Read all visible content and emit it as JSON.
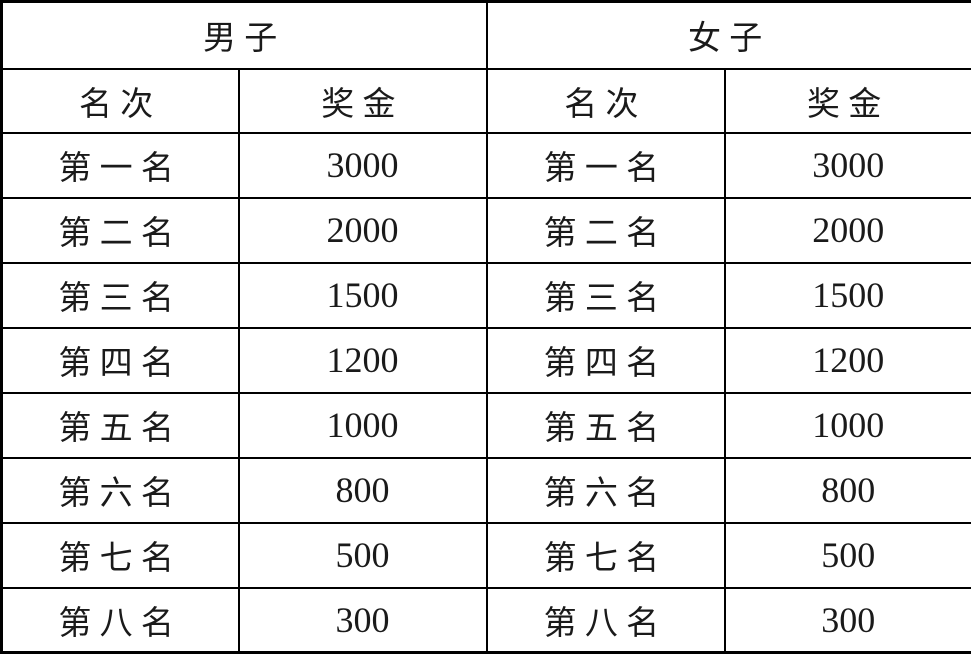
{
  "table": {
    "group_headers": [
      {
        "label": "男子"
      },
      {
        "label": "女子"
      }
    ],
    "column_headers": [
      "名次",
      "奖金",
      "名次",
      "奖金"
    ],
    "rows": [
      [
        "第一名",
        "3000",
        "第一名",
        "3000"
      ],
      [
        "第二名",
        "2000",
        "第二名",
        "2000"
      ],
      [
        "第三名",
        "1500",
        "第三名",
        "1500"
      ],
      [
        "第四名",
        "1200",
        "第四名",
        "1200"
      ],
      [
        "第五名",
        "1000",
        "第五名",
        "1000"
      ],
      [
        "第六名",
        "800",
        "第六名",
        "800"
      ],
      [
        "第七名",
        "500",
        "第七名",
        "500"
      ],
      [
        "第八名",
        "300",
        "第八名",
        "300"
      ]
    ]
  },
  "colors": {
    "border": "#000000",
    "text": "#1a1a1a",
    "background": "#ffffff"
  },
  "chart_data": {
    "type": "table",
    "title": "",
    "groups": [
      {
        "name": "男子",
        "columns": [
          "名次",
          "奖金"
        ],
        "ranks": [
          "第一名",
          "第二名",
          "第三名",
          "第四名",
          "第五名",
          "第六名",
          "第七名",
          "第八名"
        ],
        "prizes": [
          3000,
          2000,
          1500,
          1200,
          1000,
          800,
          500,
          300
        ]
      },
      {
        "name": "女子",
        "columns": [
          "名次",
          "奖金"
        ],
        "ranks": [
          "第一名",
          "第二名",
          "第三名",
          "第四名",
          "第五名",
          "第六名",
          "第七名",
          "第八名"
        ],
        "prizes": [
          3000,
          2000,
          1500,
          1200,
          1000,
          800,
          500,
          300
        ]
      }
    ]
  }
}
